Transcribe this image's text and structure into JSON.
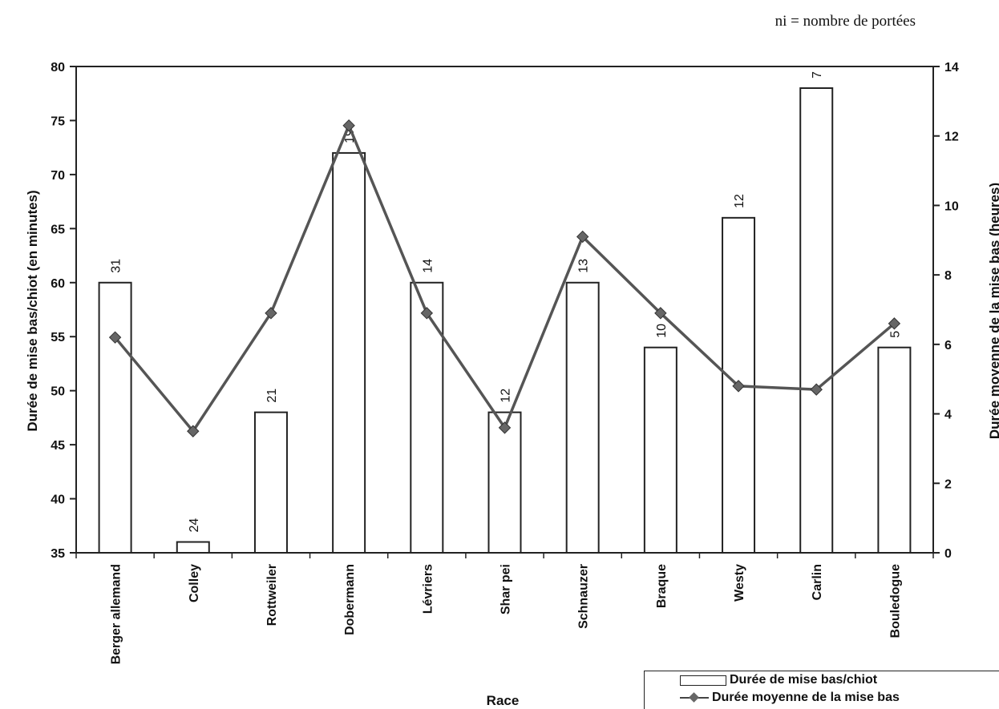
{
  "note": "ni = nombre de portées",
  "chart_data": {
    "type": "bar+line",
    "categories": [
      "Berger allemand",
      "Colley",
      "Rottweiler",
      "Dobermann",
      "Lévriers",
      "Shar pei",
      "Schnauzer",
      "Braque",
      "Westy",
      "Carlin",
      "Bouledogue"
    ],
    "series": [
      {
        "name": "Durée de mise bas/chiot",
        "type": "bar",
        "axis": "left",
        "values": [
          60,
          36,
          48,
          72,
          60,
          48,
          60,
          54,
          66,
          78,
          54
        ],
        "labels": [
          "31",
          "24",
          "21",
          "19",
          "14",
          "12",
          "13",
          "10",
          "12",
          "7",
          "5"
        ]
      },
      {
        "name": "Durée moyenne de la mise bas",
        "type": "line",
        "axis": "right",
        "values": [
          6.2,
          3.5,
          6.9,
          12.3,
          6.9,
          3.6,
          9.1,
          6.9,
          4.8,
          4.7,
          6.6
        ]
      }
    ],
    "xlabel": "Race",
    "ylabel": "Durée de mise bas/chiot (en minutes)",
    "y2label": "Durée moyenne de la mise bas (heures)",
    "ylim": [
      35,
      80
    ],
    "yticks": [
      35,
      40,
      45,
      50,
      55,
      60,
      65,
      70,
      75,
      80
    ],
    "y2lim": [
      0,
      14
    ],
    "y2ticks": [
      0,
      2,
      4,
      6,
      8,
      10,
      12,
      14
    ],
    "grid": false,
    "legend_position": "bottom-right",
    "colors": {
      "bar_fill": "#ffffff",
      "bar_stroke": "#222222",
      "line": "#555555",
      "marker": "#666666"
    }
  }
}
